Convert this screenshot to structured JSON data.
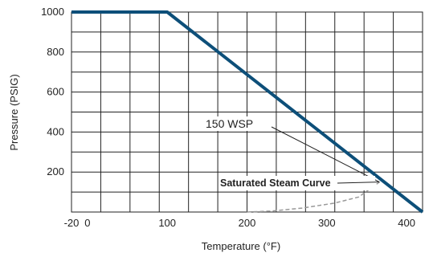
{
  "chart_data": {
    "type": "line",
    "title": "",
    "xlabel": "Temperature (°F)",
    "ylabel": "Pressure (PSIG)",
    "xlim": [
      -20,
      420
    ],
    "ylim": [
      0,
      1000
    ],
    "x_ticks": [
      -20,
      0,
      100,
      200,
      300,
      400
    ],
    "y_ticks": [
      200,
      400,
      600,
      800,
      1000
    ],
    "grid": true,
    "series": [
      {
        "name": "150 WSP",
        "color": "#0d4f79",
        "x": [
          -20,
          100,
          420
        ],
        "y": [
          1000,
          1000,
          0
        ]
      },
      {
        "name": "Saturated Steam Curve",
        "color": "#999999",
        "style": "dashed",
        "x": [
          200,
          230,
          270,
          310,
          340,
          366
        ],
        "y": [
          0,
          5,
          20,
          45,
          75,
          150
        ]
      }
    ],
    "annotations": [
      {
        "text": "150 WSP",
        "target": [
          366,
          150
        ]
      },
      {
        "text": "Saturated Steam Curve",
        "target": [
          366,
          150
        ]
      }
    ]
  }
}
